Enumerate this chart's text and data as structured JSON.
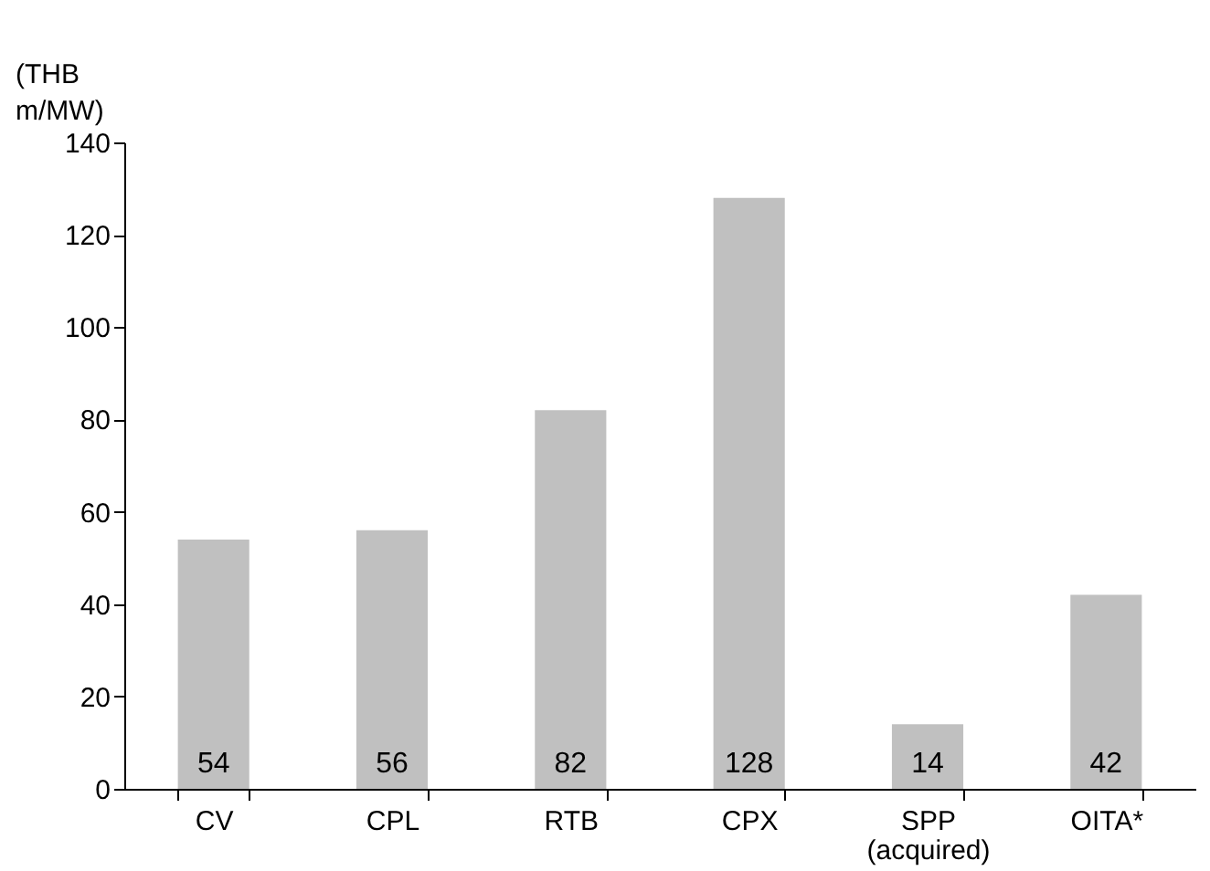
{
  "chart_data": {
    "type": "bar",
    "ylabel": "(THB m/MW)",
    "categories": [
      "CV",
      "CPL",
      "RTB",
      "CPX",
      "SPP (acquired)",
      "OITA*"
    ],
    "values": [
      54,
      56,
      82,
      128,
      14,
      42
    ],
    "color": "#c0c0c0",
    "ylim": [
      0,
      140
    ],
    "yticks": [
      0,
      20,
      40,
      60,
      80,
      100,
      120,
      140
    ],
    "data_labels": true,
    "grid": false
  }
}
